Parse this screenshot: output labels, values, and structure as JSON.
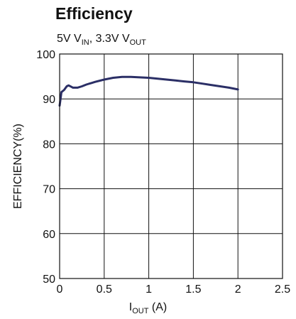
{
  "title": "Efficiency",
  "subtitle": {
    "a": "5V V",
    "a_sub": "IN",
    "b": ", 3.3V V",
    "b_sub": "OUT"
  },
  "chart_data": {
    "type": "line",
    "xlabel": {
      "main": "I",
      "sub": "OUT",
      "unit": " (A)"
    },
    "ylabel": "EFFICIENCY(%)",
    "xlim": [
      0,
      2.5
    ],
    "ylim": [
      50,
      100
    ],
    "xticks": [
      "0",
      "0.5",
      "1",
      "1.5",
      "2",
      "2.5"
    ],
    "yticks": [
      "50",
      "60",
      "70",
      "80",
      "90",
      "100"
    ],
    "grid": true,
    "line_color": "#2b2f66",
    "series": [
      {
        "x": [
          0.0,
          0.01,
          0.02,
          0.05,
          0.08,
          0.1,
          0.13,
          0.15,
          0.2,
          0.25,
          0.3,
          0.4,
          0.5,
          0.6,
          0.7,
          0.8,
          0.9,
          1.0,
          1.1,
          1.2,
          1.3,
          1.4,
          1.5,
          1.6,
          1.7,
          1.8,
          1.9,
          2.0
        ],
        "y": [
          88.5,
          90.0,
          91.5,
          92.0,
          92.8,
          93.0,
          92.7,
          92.5,
          92.5,
          92.8,
          93.2,
          93.8,
          94.3,
          94.7,
          94.9,
          94.9,
          94.8,
          94.7,
          94.5,
          94.3,
          94.1,
          93.9,
          93.7,
          93.4,
          93.1,
          92.8,
          92.5,
          92.1
        ]
      }
    ]
  }
}
